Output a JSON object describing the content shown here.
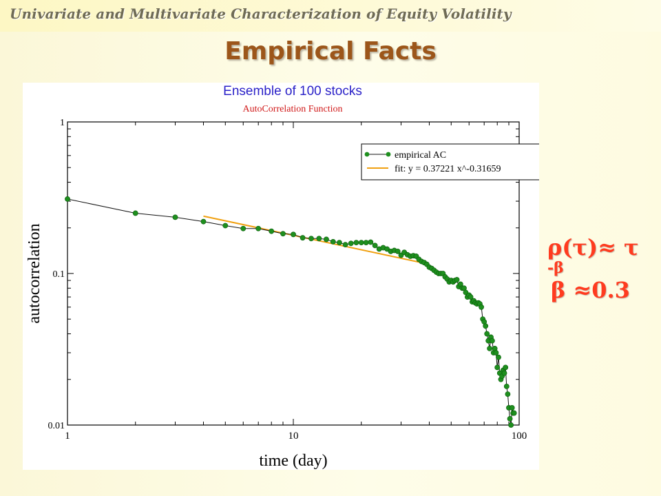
{
  "header": {
    "title": "Univariate and Multivariate Characterization of Equity Volatility"
  },
  "slide_title": "Empirical Facts",
  "formulas": {
    "power_law_main": "ρ(τ)≈ τ ",
    "power_law_exponent": "-β",
    "beta_value": "β ≈0.3"
  },
  "colors": {
    "title_brown": "#9c561a",
    "formula_red": "#ff3b1f",
    "chart_title_blue": "#2b22c8",
    "chart_subtitle_red": "#d01818",
    "empirical_green": "#1e8f1e",
    "fit_orange": "#f0a010"
  },
  "chart_data": {
    "type": "scatter",
    "title": "Ensemble of 100 stocks",
    "subtitle": "AutoCorrelation Function",
    "xlabel": "time (day)",
    "ylabel": "autocorrelation",
    "xscale": "log",
    "yscale": "log",
    "xlim": [
      1,
      100
    ],
    "ylim": [
      0.01,
      1
    ],
    "x_ticks": [
      1,
      10,
      100
    ],
    "x_tick_labels": [
      "1",
      "10",
      "100"
    ],
    "y_ticks": [
      0.01,
      0.1,
      1
    ],
    "y_tick_labels": [
      "0.01",
      "0.1",
      "1"
    ],
    "legend_position": "top-right",
    "series": [
      {
        "name": "empirical AC",
        "style": "line+markers",
        "color": "#1e8f1e",
        "x": [
          1,
          2,
          3,
          4,
          5,
          6,
          7,
          8,
          9,
          10,
          11,
          12,
          13,
          14,
          15,
          16,
          17,
          18,
          19,
          20,
          21,
          22,
          23,
          24,
          25,
          26,
          27,
          28,
          29,
          30,
          31,
          32,
          33,
          34,
          35,
          36,
          37,
          38,
          39,
          40,
          41,
          42,
          43,
          44,
          45,
          46,
          47,
          48,
          49,
          50,
          51,
          52,
          53,
          54,
          55,
          56,
          57,
          58,
          59,
          60,
          61,
          62,
          63,
          64,
          65,
          66,
          67,
          68,
          69,
          70,
          71,
          72,
          73,
          74,
          75,
          76,
          77,
          78,
          79,
          80,
          81,
          82,
          83,
          84,
          85,
          86,
          87,
          88,
          89,
          90,
          91,
          92,
          93,
          94,
          95
        ],
        "y": [
          0.31,
          0.25,
          0.235,
          0.22,
          0.207,
          0.198,
          0.198,
          0.19,
          0.183,
          0.181,
          0.172,
          0.17,
          0.17,
          0.168,
          0.162,
          0.16,
          0.155,
          0.158,
          0.16,
          0.16,
          0.16,
          0.161,
          0.153,
          0.145,
          0.148,
          0.145,
          0.14,
          0.142,
          0.14,
          0.132,
          0.138,
          0.133,
          0.13,
          0.131,
          0.13,
          0.124,
          0.12,
          0.118,
          0.115,
          0.11,
          0.108,
          0.105,
          0.102,
          0.1,
          0.1,
          0.1,
          0.095,
          0.092,
          0.088,
          0.09,
          0.088,
          0.09,
          0.091,
          0.082,
          0.085,
          0.08,
          0.08,
          0.075,
          0.07,
          0.072,
          0.07,
          0.065,
          0.066,
          0.064,
          0.063,
          0.064,
          0.063,
          0.06,
          0.05,
          0.048,
          0.045,
          0.04,
          0.036,
          0.032,
          0.038,
          0.036,
          0.03,
          0.032,
          0.03,
          0.024,
          0.028,
          0.022,
          0.02,
          0.021,
          0.023,
          0.022,
          0.024,
          0.018,
          0.016,
          0.013,
          0.011,
          0.01,
          0.013,
          0.012,
          0.012
        ]
      },
      {
        "name": "fit: y = 0.37221 x^-0.31659",
        "style": "line",
        "color": "#f0a010",
        "x": [
          4,
          40
        ],
        "y": [
          0.239,
          0.115
        ]
      }
    ]
  }
}
